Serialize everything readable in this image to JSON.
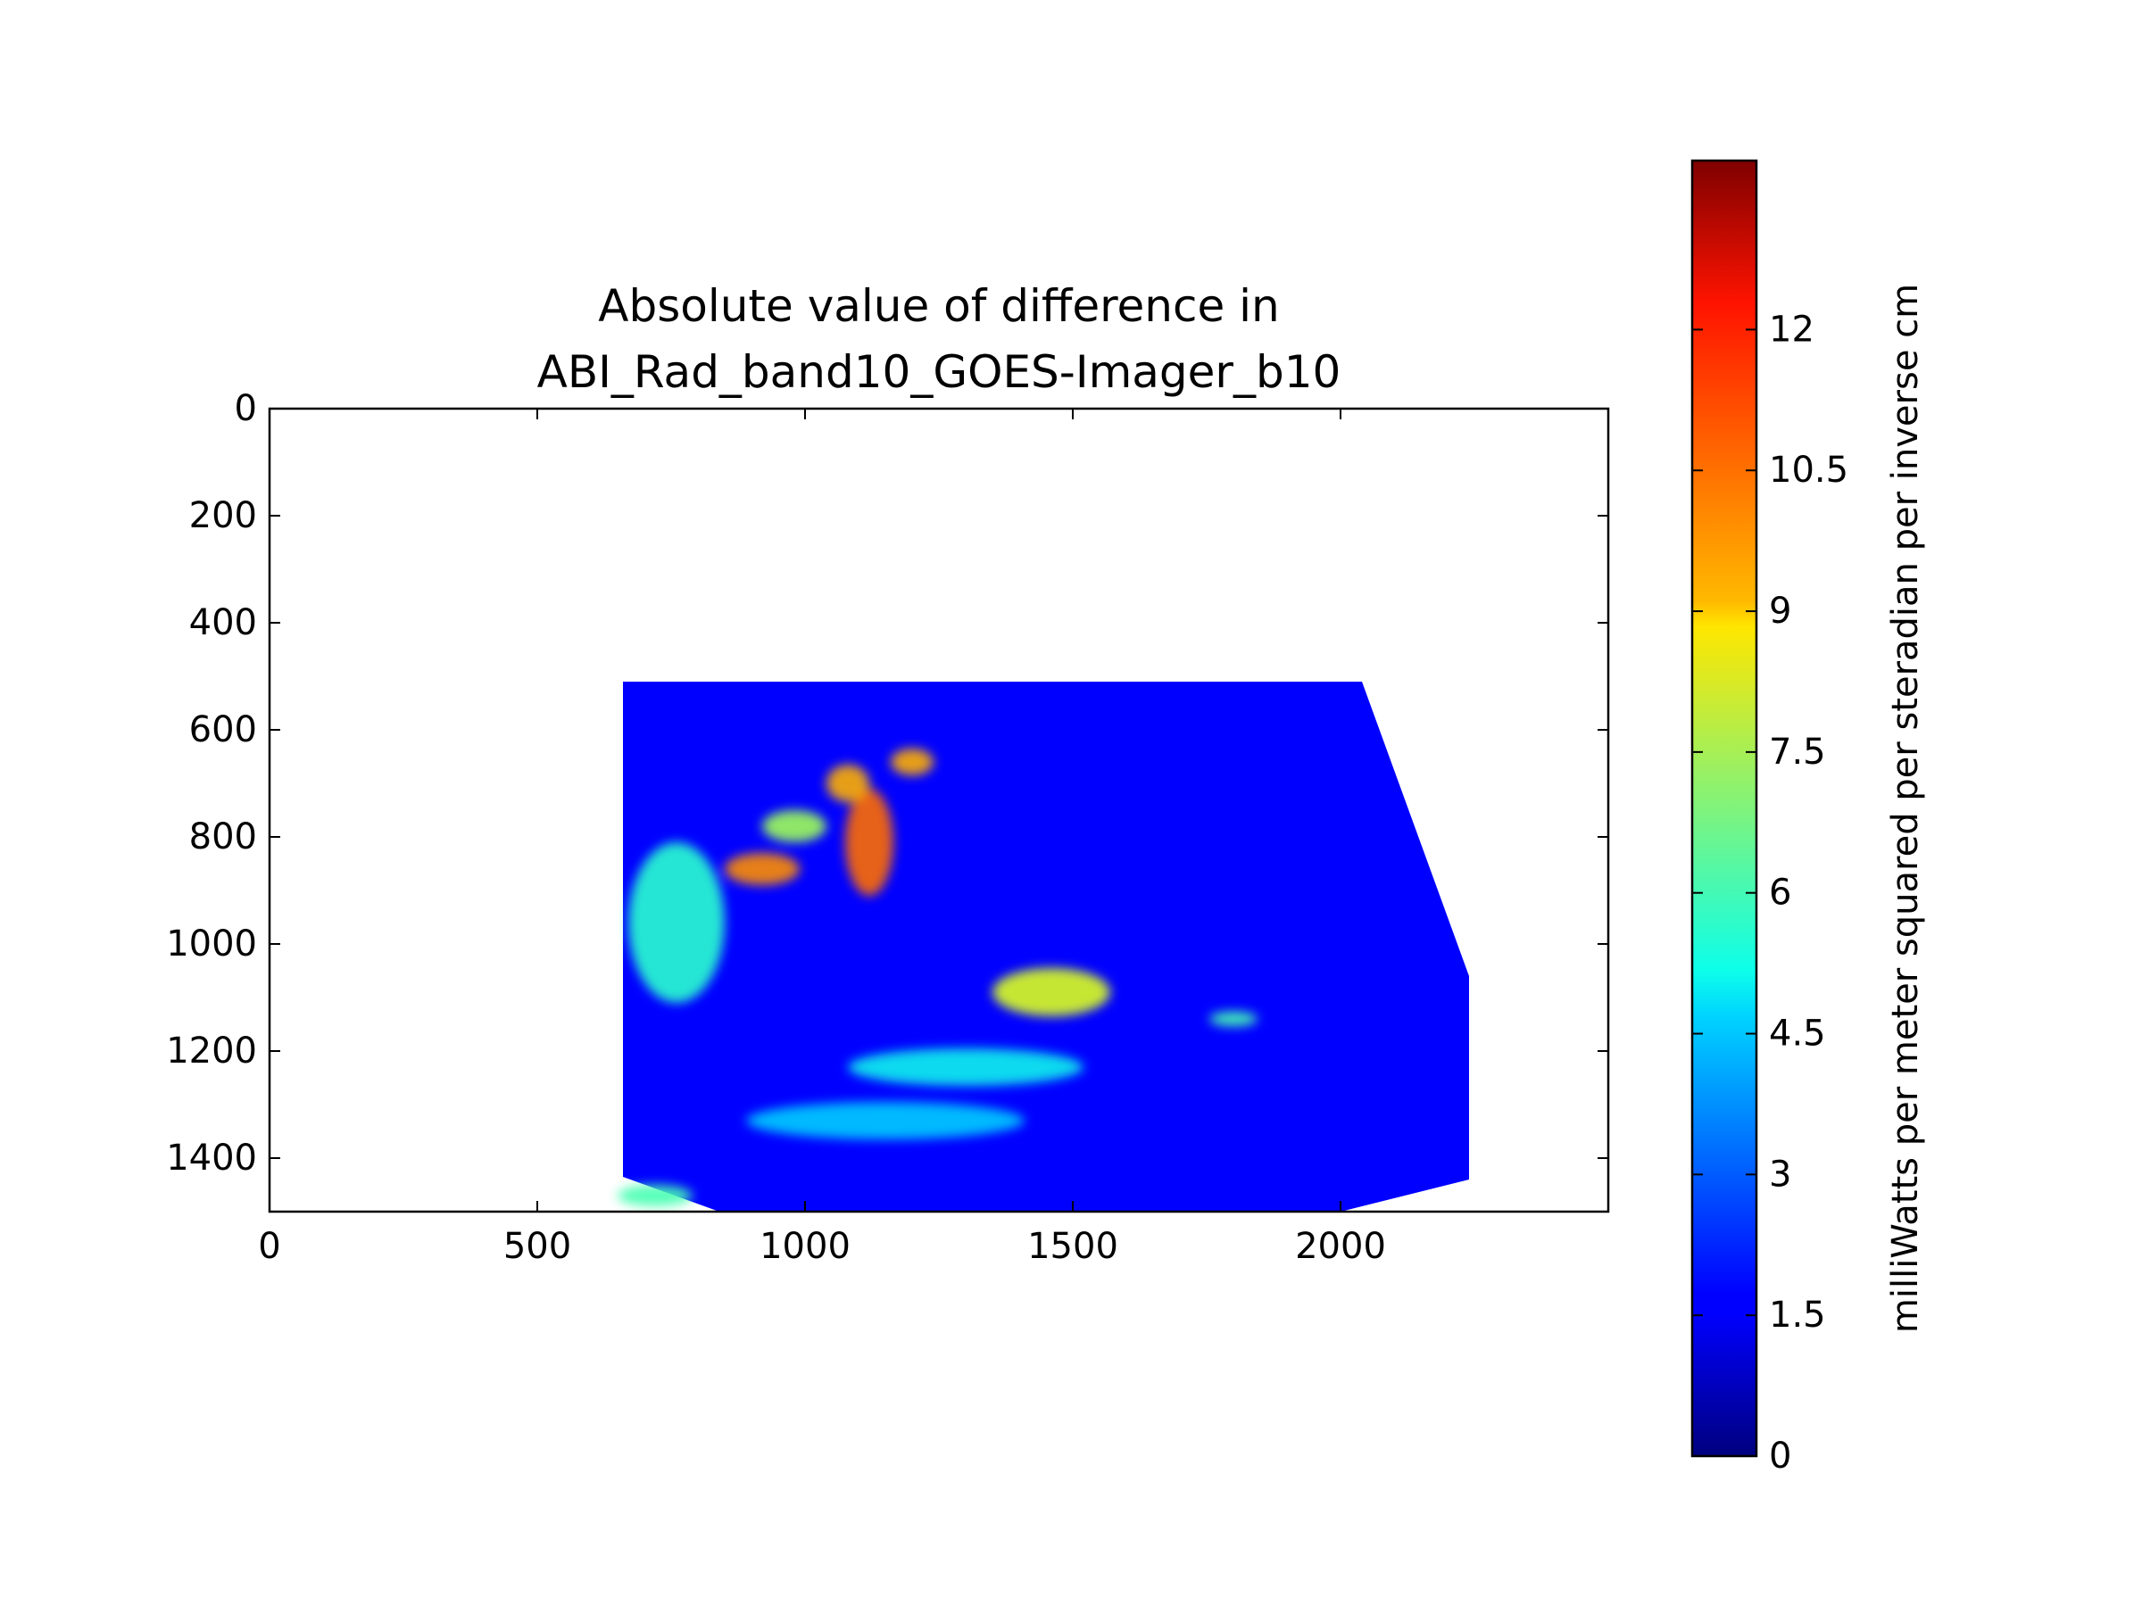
{
  "chart_data": {
    "type": "heatmap",
    "title_lines": [
      "Absolute value of difference in",
      "ABI_Rad_band10_GOES-Imager_b10"
    ],
    "xlabel": "",
    "ylabel": "",
    "xlim": [
      0,
      2500
    ],
    "ylim": [
      1500,
      0
    ],
    "x_ticks": [
      0,
      500,
      1000,
      1500,
      2000
    ],
    "x_tick_labels": [
      "0",
      "500",
      "1000",
      "1500",
      "2000"
    ],
    "y_ticks": [
      0,
      200,
      400,
      600,
      800,
      1000,
      1200,
      1400
    ],
    "y_tick_labels": [
      "0",
      "200",
      "400",
      "600",
      "800",
      "1000",
      "1200",
      "1400"
    ],
    "data_region": {
      "polygon": [
        [
          660,
          510
        ],
        [
          2040,
          510
        ],
        [
          2240,
          1060
        ],
        [
          2240,
          1440
        ],
        [
          2000,
          1500
        ],
        [
          840,
          1500
        ],
        [
          660,
          1435
        ]
      ],
      "background_value": 1.6
    },
    "features": [
      {
        "x": 1120,
        "y": 810,
        "rx": 45,
        "ry": 100,
        "value": 11.0
      },
      {
        "x": 1080,
        "y": 700,
        "rx": 40,
        "ry": 35,
        "value": 10.0
      },
      {
        "x": 1200,
        "y": 660,
        "rx": 40,
        "ry": 25,
        "value": 10.0
      },
      {
        "x": 920,
        "y": 860,
        "rx": 70,
        "ry": 30,
        "value": 10.5
      },
      {
        "x": 980,
        "y": 780,
        "rx": 60,
        "ry": 30,
        "value": 7.5
      },
      {
        "x": 1460,
        "y": 1090,
        "rx": 110,
        "ry": 45,
        "value": 8.5
      },
      {
        "x": 1800,
        "y": 1140,
        "rx": 45,
        "ry": 14,
        "value": 6.0
      },
      {
        "x": 1300,
        "y": 1230,
        "rx": 220,
        "ry": 35,
        "value": 5.0
      },
      {
        "x": 1150,
        "y": 1330,
        "rx": 260,
        "ry": 35,
        "value": 4.5
      },
      {
        "x": 760,
        "y": 960,
        "rx": 90,
        "ry": 150,
        "value": 5.5
      },
      {
        "x": 720,
        "y": 1470,
        "rx": 70,
        "ry": 20,
        "value": 6.0
      }
    ],
    "colorbar": {
      "cmap": "jet",
      "vmin": 0,
      "vmax": 13.8,
      "ticks": [
        0,
        1.5,
        3,
        4.5,
        6,
        7.5,
        9,
        10.5,
        12
      ],
      "tick_labels": [
        "0",
        "1.5",
        "3",
        "4.5",
        "6",
        "7.5",
        "9",
        "10.5",
        "12"
      ],
      "label": "milliWatts per meter squared per steradian per inverse cm"
    }
  }
}
